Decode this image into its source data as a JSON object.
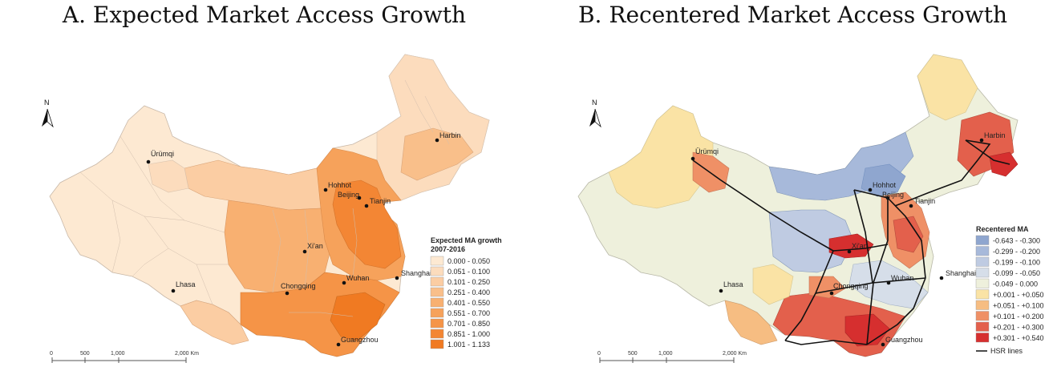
{
  "panels": [
    {
      "title": "A. Expected Market Access Growth",
      "legend": {
        "title_line1": "Expected MA growth",
        "title_line2": "2007-2016",
        "items": [
          {
            "label": "0.000 - 0.050",
            "color": "#fde9d2"
          },
          {
            "label": "0.051 - 0.100",
            "color": "#fcdcbd"
          },
          {
            "label": "0.101 - 0.250",
            "color": "#fbcda3"
          },
          {
            "label": "0.251 - 0.400",
            "color": "#f9bf8a"
          },
          {
            "label": "0.401 - 0.550",
            "color": "#f8b071"
          },
          {
            "label": "0.551 - 0.700",
            "color": "#f6a25b"
          },
          {
            "label": "0.701 - 0.850",
            "color": "#f59447"
          },
          {
            "label": "0.851 - 1.000",
            "color": "#f38634"
          },
          {
            "label": "1.001 - 1.133",
            "color": "#f07a22"
          }
        ]
      },
      "cities": [
        {
          "name": "Ürümqi"
        },
        {
          "name": "Lhasa"
        },
        {
          "name": "Hohhot"
        },
        {
          "name": "Beijing"
        },
        {
          "name": "Tianjin"
        },
        {
          "name": "Harbin"
        },
        {
          "name": "Xi'an"
        },
        {
          "name": "Chongqing"
        },
        {
          "name": "Wuhan"
        },
        {
          "name": "Shanghai"
        },
        {
          "name": "Guangzhou"
        }
      ],
      "scale": {
        "ticks": [
          "0",
          "500",
          "1,000",
          "2,000 Km"
        ]
      },
      "north": "N"
    },
    {
      "title": "B. Recentered Market Access Growth",
      "legend": {
        "title_line1": "Recentered MA",
        "items": [
          {
            "label": "-0.643 - -0.300",
            "color": "#8fa6cf"
          },
          {
            "label": "-0.299 - -0.200",
            "color": "#a7b9da"
          },
          {
            "label": "-0.199 - -0.100",
            "color": "#bfcbe2"
          },
          {
            "label": "-0.099 - -0.050",
            "color": "#d6dee9"
          },
          {
            "label": "-0.049 - 0.000",
            "color": "#eef0dc"
          },
          {
            "label": "+0.001 - +0.050",
            "color": "#fae3a5"
          },
          {
            "label": "+0.051 - +0.100",
            "color": "#f6bd82"
          },
          {
            "label": "+0.101 - +0.200",
            "color": "#ef9066"
          },
          {
            "label": "+0.201 - +0.300",
            "color": "#e3604c"
          },
          {
            "label": "+0.301 - +0.540",
            "color": "#d62f2f"
          }
        ],
        "line_label": "HSR lines"
      },
      "cities": [
        {
          "name": "Ürümqi"
        },
        {
          "name": "Lhasa"
        },
        {
          "name": "Hohhot"
        },
        {
          "name": "Beijing"
        },
        {
          "name": "Tianjin"
        },
        {
          "name": "Harbin"
        },
        {
          "name": "Xi'an"
        },
        {
          "name": "Chongqing"
        },
        {
          "name": "Wuhan"
        },
        {
          "name": "Shanghai"
        },
        {
          "name": "Guangzhou"
        }
      ],
      "scale": {
        "ticks": [
          "0",
          "500",
          "1,000",
          "2,000 Km"
        ]
      },
      "north": "N"
    }
  ]
}
